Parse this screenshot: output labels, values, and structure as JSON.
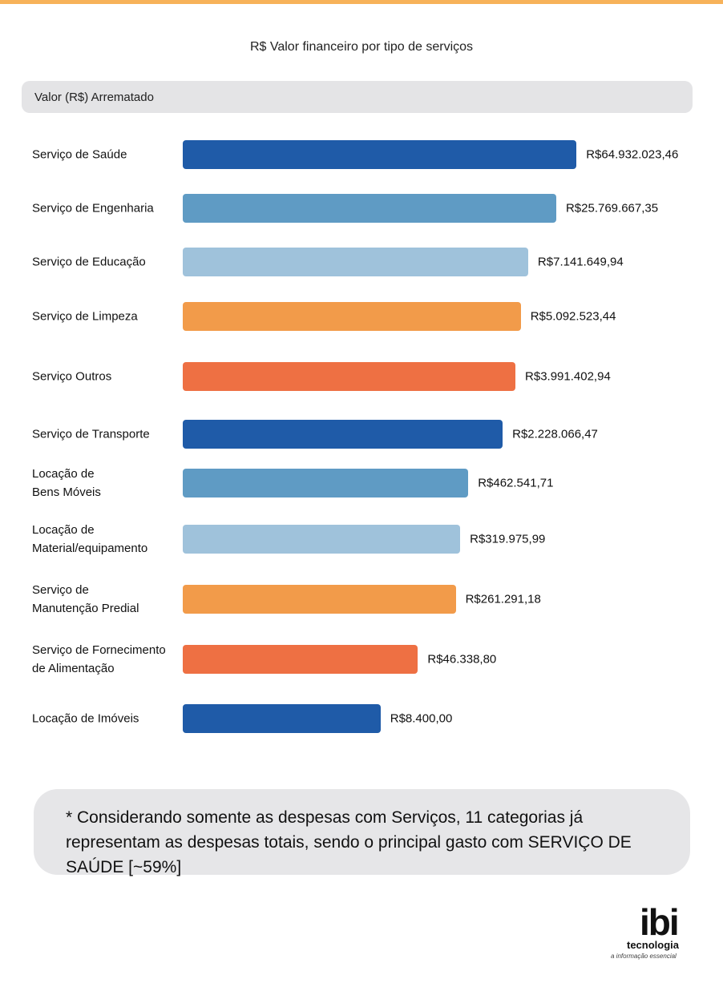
{
  "chart_data": {
    "type": "bar",
    "orientation": "horizontal",
    "title": "R$ Valor financeiro por tipo de serviços",
    "value_axis_label": "Valor (R$) Arrematado",
    "categories": [
      "Serviço de Saúde",
      "Serviço de Engenharia",
      "Serviço de Educação",
      "Serviço de Limpeza",
      "Serviço Outros",
      "Serviço de Transporte",
      "Locação de\nBens Móveis",
      "Locação de\nMaterial/equipamento",
      "Serviço de\nManutenção Predial",
      "Serviço de Fornecimento\nde Alimentação",
      "Locação de Imóveis"
    ],
    "values": [
      64932023.46,
      25769667.35,
      7141649.94,
      5092523.44,
      3991402.94,
      2228066.47,
      462541.71,
      319975.99,
      261291.18,
      46338.8,
      8400.0
    ],
    "value_labels": [
      "R$64.932.023,46",
      "R$25.769.667,35",
      "R$7.141.649,94",
      "R$5.092.523,44",
      "R$3.991.402,94",
      "R$2.228.066,47",
      "R$462.541,71",
      "R$319.975,99",
      "R$261.291,18",
      "R$46.338,80",
      "R$8.400,00"
    ],
    "colors": [
      "#1f5ba8",
      "#5f9bc4",
      "#9fc2db",
      "#f29b4a",
      "#ee7043",
      "#1f5ba8",
      "#5f9bc4",
      "#9fc2db",
      "#f29b4a",
      "#ee7043",
      "#1f5ba8"
    ],
    "log_scale": true,
    "xlim": [
      1,
      100000000
    ]
  },
  "note": "* Considerando somente as despesas com Serviços, 11 categorias já representam as despesas totais, sendo o principal gasto com SERVIÇO DE SAÚDE [~59%]",
  "logo": {
    "name": "ibi",
    "text": "tecnologia",
    "tagline": "a informação essencial"
  }
}
